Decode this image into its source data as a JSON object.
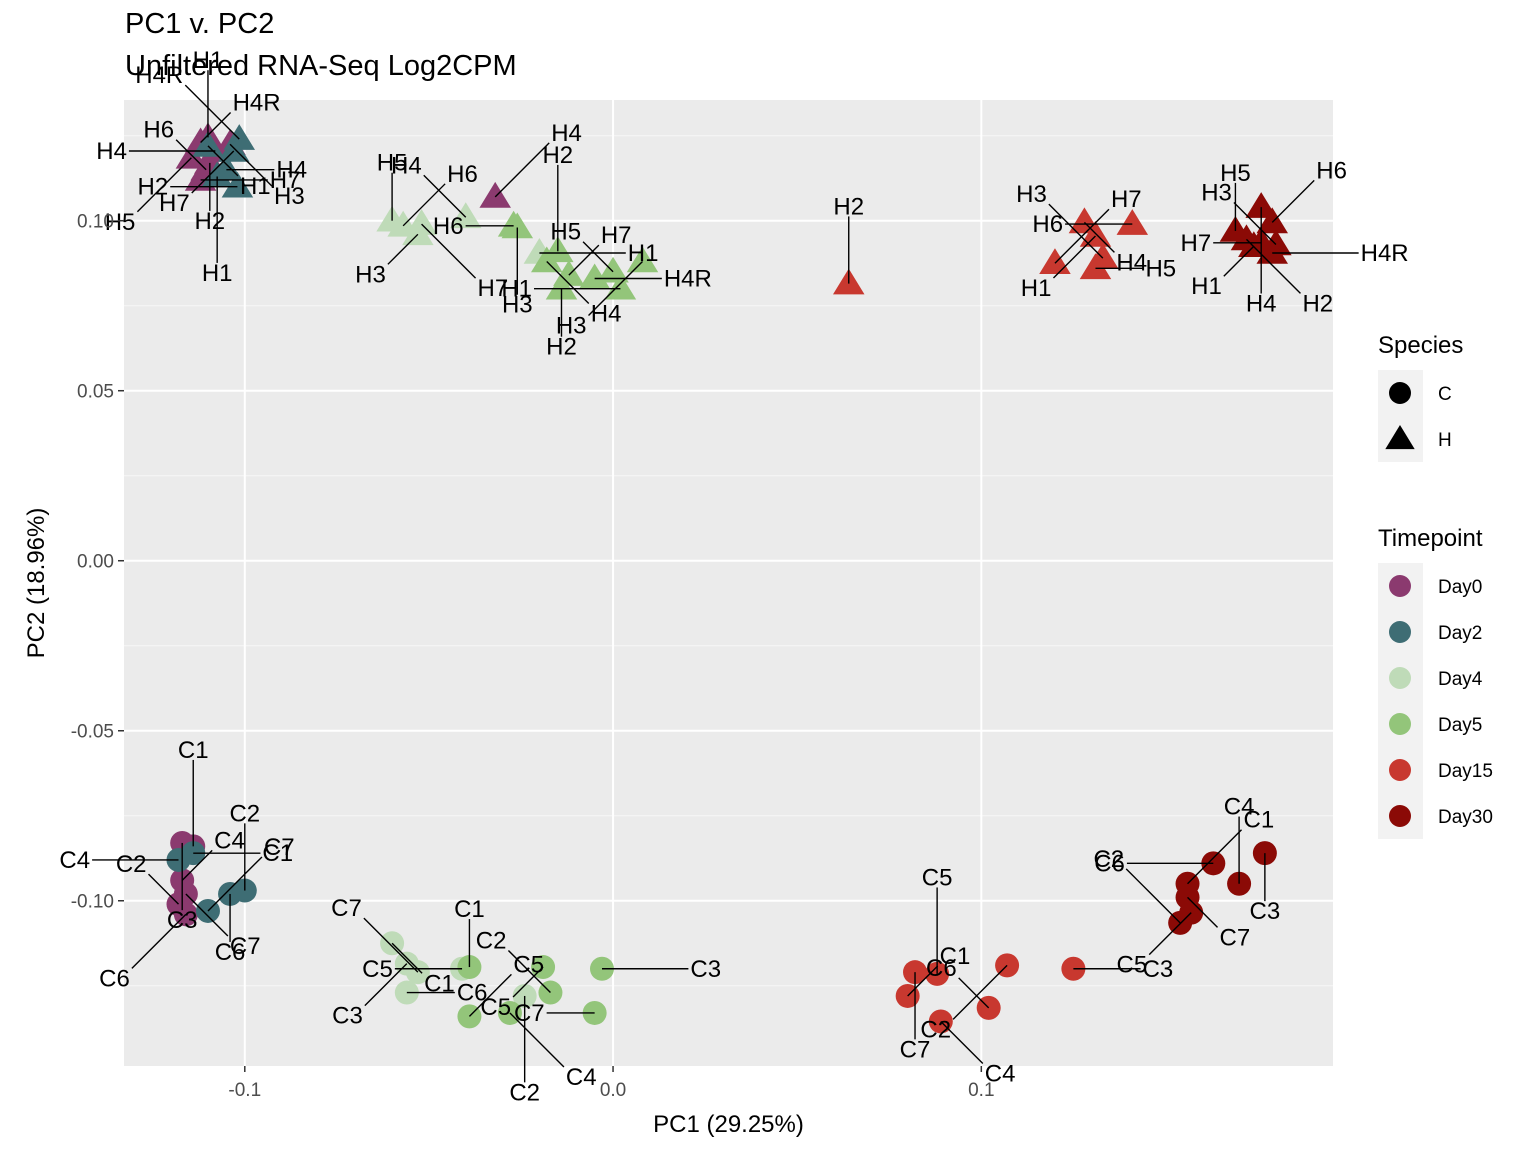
{
  "chart_data": {
    "type": "scatter",
    "title": "PC1 v. PC2",
    "subtitle": "Unfiltered RNA-Seq Log2CPM",
    "xlabel": "PC1 (29.25%)",
    "ylabel": "PC2 (18.96%)",
    "xlim": [
      -0.1328,
      0.1955
    ],
    "ylim": [
      -0.1486,
      0.1355
    ],
    "x_ticks": [
      {
        "value": -0.1,
        "label": "-0.1"
      },
      {
        "value": 0.0,
        "label": "0.0"
      },
      {
        "value": 0.1,
        "label": "0.1"
      }
    ],
    "y_ticks": [
      {
        "value": 0.1,
        "label": "0.10"
      },
      {
        "value": 0.05,
        "label": "0.05"
      },
      {
        "value": 0.0,
        "label": "0.00"
      },
      {
        "value": -0.05,
        "label": "-0.05"
      },
      {
        "value": -0.1,
        "label": "-0.10"
      }
    ],
    "grid": true,
    "legend_position": "right",
    "legends": {
      "species": {
        "title": "Species",
        "items": [
          {
            "label": "C",
            "shape": "circle"
          },
          {
            "label": "H",
            "shape": "triangle"
          }
        ]
      },
      "timepoint": {
        "title": "Timepoint",
        "items": [
          {
            "label": "Day0",
            "color": "#8B3A6F"
          },
          {
            "label": "Day2",
            "color": "#3E6D74"
          },
          {
            "label": "Day4",
            "color": "#BFDBB8"
          },
          {
            "label": "Day5",
            "color": "#93C57A"
          },
          {
            "label": "Day15",
            "color": "#C8382F"
          },
          {
            "label": "Day30",
            "color": "#8B0A06"
          }
        ]
      }
    },
    "colors": {
      "panel": "#EBEBEB",
      "grid_major": "#FFFFFF",
      "grid_minor": "#F5F5F5",
      "Day0": "#8B3A6F",
      "Day2": "#3E6D74",
      "Day4": "#BFDBB8",
      "Day5": "#93C57A",
      "Day15": "#C8382F",
      "Day30": "#8B0A06"
    },
    "points": [
      {
        "x": -0.112,
        "y": 0.123,
        "species": "H",
        "timepoint": "Day0",
        "label": "H4R"
      },
      {
        "x": -0.104,
        "y": 0.1225,
        "species": "H",
        "timepoint": "Day0",
        "label": "H3"
      },
      {
        "x": -0.1145,
        "y": 0.1185,
        "species": "H",
        "timepoint": "Day0",
        "label": "H5"
      },
      {
        "x": -0.1105,
        "y": 0.115,
        "species": "H",
        "timepoint": "Day0",
        "label": "H6"
      },
      {
        "x": -0.112,
        "y": 0.112,
        "species": "H",
        "timepoint": "Day0",
        "label": "H7"
      },
      {
        "x": -0.108,
        "y": 0.1205,
        "species": "H",
        "timepoint": "Day0",
        "label": "H4"
      },
      {
        "x": -0.1095,
        "y": 0.117,
        "species": "H",
        "timepoint": "Day0",
        "label": "H2"
      },
      {
        "x": -0.11,
        "y": 0.1245,
        "species": "H",
        "timepoint": "Day0",
        "label": "H1"
      },
      {
        "x": -0.032,
        "y": 0.107,
        "species": "H",
        "timepoint": "Day0",
        "label": "H4"
      },
      {
        "x": -0.11,
        "y": 0.122,
        "species": "H",
        "timepoint": "Day2",
        "label": "H1"
      },
      {
        "x": -0.103,
        "y": 0.1205,
        "species": "H",
        "timepoint": "Day2",
        "label": "H7"
      },
      {
        "x": -0.1015,
        "y": 0.124,
        "species": "H",
        "timepoint": "Day2",
        "label": "H4R"
      },
      {
        "x": -0.105,
        "y": 0.115,
        "species": "H",
        "timepoint": "Day2",
        "label": "H4"
      },
      {
        "x": -0.102,
        "y": 0.11,
        "species": "H",
        "timepoint": "Day2",
        "label": "H2"
      },
      {
        "x": -0.1075,
        "y": 0.113,
        "species": "H",
        "timepoint": "Day2",
        "label": "H1"
      },
      {
        "x": -0.06,
        "y": 0.1,
        "species": "H",
        "timepoint": "Day4",
        "label": "H5"
      },
      {
        "x": -0.057,
        "y": 0.0985,
        "species": "H",
        "timepoint": "Day4",
        "label": "H6"
      },
      {
        "x": -0.052,
        "y": 0.099,
        "species": "H",
        "timepoint": "Day4",
        "label": "H7"
      },
      {
        "x": -0.053,
        "y": 0.096,
        "species": "H",
        "timepoint": "Day4",
        "label": "H3"
      },
      {
        "x": -0.04,
        "y": 0.101,
        "species": "H",
        "timepoint": "Day4",
        "label": "H4"
      },
      {
        "x": -0.02,
        "y": 0.0905,
        "species": "H",
        "timepoint": "Day4",
        "label": "H1"
      },
      {
        "x": -0.027,
        "y": 0.0985,
        "species": "H",
        "timepoint": "Day5",
        "label": "H6"
      },
      {
        "x": -0.026,
        "y": 0.098,
        "species": "H",
        "timepoint": "Day5",
        "label": "H3"
      },
      {
        "x": -0.015,
        "y": 0.091,
        "species": "H",
        "timepoint": "Day5",
        "label": "H2"
      },
      {
        "x": -0.012,
        "y": 0.084,
        "species": "H",
        "timepoint": "Day5",
        "label": "H7"
      },
      {
        "x": -0.018,
        "y": 0.088,
        "species": "H",
        "timepoint": "Day5",
        "label": "H4"
      },
      {
        "x": 0.008,
        "y": 0.088,
        "species": "H",
        "timepoint": "Day5",
        "label": "H3"
      },
      {
        "x": 0.0,
        "y": 0.085,
        "species": "H",
        "timepoint": "Day5",
        "label": "H5"
      },
      {
        "x": -0.005,
        "y": 0.083,
        "species": "H",
        "timepoint": "Day5",
        "label": "H4R"
      },
      {
        "x": 0.002,
        "y": 0.08,
        "species": "H",
        "timepoint": "Day5",
        "label": "H1"
      },
      {
        "x": -0.014,
        "y": 0.08,
        "species": "H",
        "timepoint": "Day5",
        "label": "H2"
      },
      {
        "x": 0.064,
        "y": 0.0815,
        "species": "H",
        "timepoint": "Day15",
        "label": "H2"
      },
      {
        "x": 0.12,
        "y": 0.0875,
        "species": "H",
        "timepoint": "Day15",
        "label": "H7"
      },
      {
        "x": 0.128,
        "y": 0.0995,
        "species": "H",
        "timepoint": "Day15",
        "label": "H4"
      },
      {
        "x": 0.131,
        "y": 0.0955,
        "species": "H",
        "timepoint": "Day15",
        "label": "H1"
      },
      {
        "x": 0.133,
        "y": 0.089,
        "species": "H",
        "timepoint": "Day15",
        "label": "H3"
      },
      {
        "x": 0.131,
        "y": 0.086,
        "species": "H",
        "timepoint": "Day15",
        "label": "H5"
      },
      {
        "x": 0.141,
        "y": 0.099,
        "species": "H",
        "timepoint": "Day15",
        "label": "H6"
      },
      {
        "x": 0.176,
        "y": 0.104,
        "species": "H",
        "timepoint": "Day30",
        "label": "H4"
      },
      {
        "x": 0.169,
        "y": 0.097,
        "species": "H",
        "timepoint": "Day30",
        "label": "H5"
      },
      {
        "x": 0.179,
        "y": 0.0995,
        "species": "H",
        "timepoint": "Day30",
        "label": "H6"
      },
      {
        "x": 0.172,
        "y": 0.0945,
        "species": "H",
        "timepoint": "Day30",
        "label": "H2"
      },
      {
        "x": 0.174,
        "y": 0.0925,
        "species": "H",
        "timepoint": "Day30",
        "label": "H1"
      },
      {
        "x": 0.18,
        "y": 0.093,
        "species": "H",
        "timepoint": "Day30",
        "label": "H3"
      },
      {
        "x": 0.179,
        "y": 0.0905,
        "species": "H",
        "timepoint": "Day30",
        "label": "H4R"
      },
      {
        "x": 0.176,
        "y": 0.0935,
        "species": "H",
        "timepoint": "Day30",
        "label": "H7"
      },
      {
        "x": -0.117,
        "y": -0.083,
        "species": "C",
        "timepoint": "Day0",
        "label": "C3"
      },
      {
        "x": -0.114,
        "y": -0.084,
        "species": "C",
        "timepoint": "Day0",
        "label": "C1"
      },
      {
        "x": -0.117,
        "y": -0.094,
        "species": "C",
        "timepoint": "Day0",
        "label": "C4"
      },
      {
        "x": -0.116,
        "y": -0.098,
        "species": "C",
        "timepoint": "Day0",
        "label": "C7"
      },
      {
        "x": -0.116,
        "y": -0.104,
        "species": "C",
        "timepoint": "Day0",
        "label": "C6"
      },
      {
        "x": -0.118,
        "y": -0.101,
        "species": "C",
        "timepoint": "Day0",
        "label": "C2"
      },
      {
        "x": -0.114,
        "y": -0.086,
        "species": "C",
        "timepoint": "Day2",
        "label": "C1"
      },
      {
        "x": -0.118,
        "y": -0.088,
        "species": "C",
        "timepoint": "Day2",
        "label": "C4"
      },
      {
        "x": -0.104,
        "y": -0.098,
        "species": "C",
        "timepoint": "Day2",
        "label": "C6"
      },
      {
        "x": -0.1,
        "y": -0.097,
        "species": "C",
        "timepoint": "Day2",
        "label": "C2"
      },
      {
        "x": -0.11,
        "y": -0.103,
        "species": "C",
        "timepoint": "Day2",
        "label": "C7"
      },
      {
        "x": -0.06,
        "y": -0.1125,
        "species": "C",
        "timepoint": "Day4",
        "label": "C1"
      },
      {
        "x": -0.056,
        "y": -0.1185,
        "species": "C",
        "timepoint": "Day4",
        "label": "C3"
      },
      {
        "x": -0.053,
        "y": -0.121,
        "species": "C",
        "timepoint": "Day4",
        "label": "C7"
      },
      {
        "x": -0.056,
        "y": -0.127,
        "species": "C",
        "timepoint": "Day4",
        "label": "C6"
      },
      {
        "x": -0.041,
        "y": -0.12,
        "species": "C",
        "timepoint": "Day4",
        "label": "C5"
      },
      {
        "x": -0.024,
        "y": -0.128,
        "species": "C",
        "timepoint": "Day4",
        "label": "C2"
      },
      {
        "x": -0.039,
        "y": -0.1195,
        "species": "C",
        "timepoint": "Day5",
        "label": "C1"
      },
      {
        "x": -0.039,
        "y": -0.134,
        "species": "C",
        "timepoint": "Day5",
        "label": "C5"
      },
      {
        "x": -0.028,
        "y": -0.133,
        "species": "C",
        "timepoint": "Day5",
        "label": "C4"
      },
      {
        "x": -0.019,
        "y": -0.1195,
        "species": "C",
        "timepoint": "Day5",
        "label": "C5"
      },
      {
        "x": -0.017,
        "y": -0.127,
        "species": "C",
        "timepoint": "Day5",
        "label": "C2"
      },
      {
        "x": -0.003,
        "y": -0.12,
        "species": "C",
        "timepoint": "Day5",
        "label": "C3"
      },
      {
        "x": -0.005,
        "y": -0.133,
        "species": "C",
        "timepoint": "Day5",
        "label": "C7"
      },
      {
        "x": 0.082,
        "y": -0.121,
        "species": "C",
        "timepoint": "Day15",
        "label": "C7"
      },
      {
        "x": 0.088,
        "y": -0.1215,
        "species": "C",
        "timepoint": "Day15",
        "label": "C5"
      },
      {
        "x": 0.08,
        "y": -0.128,
        "species": "C",
        "timepoint": "Day15",
        "label": "C1"
      },
      {
        "x": 0.089,
        "y": -0.1355,
        "species": "C",
        "timepoint": "Day15",
        "label": "C4"
      },
      {
        "x": 0.107,
        "y": -0.119,
        "species": "C",
        "timepoint": "Day15",
        "label": "C2"
      },
      {
        "x": 0.102,
        "y": -0.1315,
        "species": "C",
        "timepoint": "Day15",
        "label": "C6"
      },
      {
        "x": 0.125,
        "y": -0.12,
        "species": "C",
        "timepoint": "Day15",
        "label": "C3"
      },
      {
        "x": 0.163,
        "y": -0.089,
        "species": "C",
        "timepoint": "Day30",
        "label": "C6"
      },
      {
        "x": 0.177,
        "y": -0.086,
        "species": "C",
        "timepoint": "Day30",
        "label": "C3"
      },
      {
        "x": 0.17,
        "y": -0.095,
        "species": "C",
        "timepoint": "Day30",
        "label": "C4"
      },
      {
        "x": 0.156,
        "y": -0.095,
        "species": "C",
        "timepoint": "Day30",
        "label": "C1"
      },
      {
        "x": 0.156,
        "y": -0.099,
        "species": "C",
        "timepoint": "Day30",
        "label": "C7"
      },
      {
        "x": 0.157,
        "y": -0.1035,
        "species": "C",
        "timepoint": "Day30",
        "label": "C5"
      },
      {
        "x": 0.154,
        "y": -0.1065,
        "species": "C",
        "timepoint": "Day30",
        "label": "C2"
      }
    ]
  }
}
